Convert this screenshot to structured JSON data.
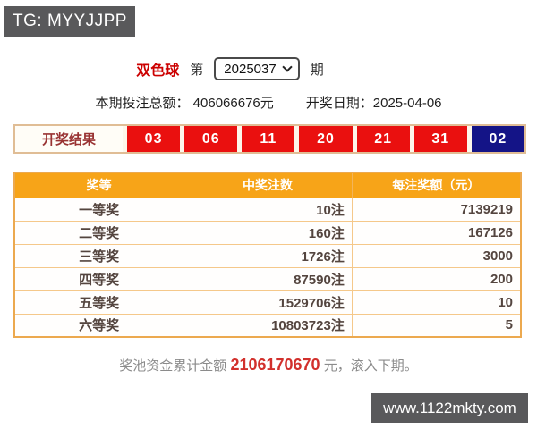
{
  "badge": {
    "text": "TG: MYYJJPP"
  },
  "header": {
    "lottery_name": "双色球",
    "issue_prefix": "第",
    "issue_suffix": "期",
    "issue_select": {
      "selected": "2025037"
    }
  },
  "info": {
    "total_bets_label": "本期投注总额：",
    "total_bets_value": "406066676元",
    "draw_date_label": "开奖日期：",
    "draw_date_value": "2025-04-06"
  },
  "results": {
    "label": "开奖结果",
    "red_balls": [
      "03",
      "06",
      "11",
      "20",
      "21",
      "31"
    ],
    "blue_ball": "02"
  },
  "prize_table": {
    "headers": [
      "奖等",
      "中奖注数",
      "每注奖额（元）"
    ],
    "rows": [
      {
        "tier": "一等奖",
        "count": "10注",
        "amount": "7139219"
      },
      {
        "tier": "二等奖",
        "count": "160注",
        "amount": "167126"
      },
      {
        "tier": "三等奖",
        "count": "1726注",
        "amount": "3000"
      },
      {
        "tier": "四等奖",
        "count": "87590注",
        "amount": "200"
      },
      {
        "tier": "五等奖",
        "count": "1529706注",
        "amount": "10"
      },
      {
        "tier": "六等奖",
        "count": "10803723注",
        "amount": "5"
      }
    ]
  },
  "summary": {
    "prefix": "奖池资金累计金额 ",
    "pool_amount": "2106170670",
    "suffix": " 元，滚入下期。"
  },
  "watermark": {
    "text": "www.1122mkty.com"
  },
  "colors": {
    "accent_orange": "#f7a418",
    "ball_red": "#ea100f",
    "ball_blue": "#141487",
    "badge_gray": "#59595b",
    "highlight_red": "#d2302c",
    "title_red": "#cc0000"
  }
}
